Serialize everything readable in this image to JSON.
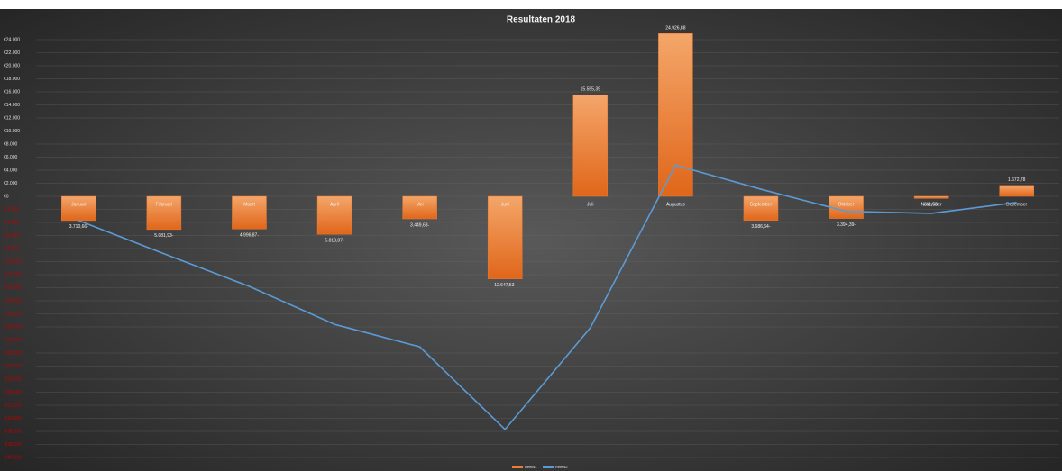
{
  "chart_data": {
    "type": "bar",
    "title": "Resultaten 2018",
    "categories": [
      "Januari",
      "Februari",
      "Maart",
      "April",
      "Mei",
      "Juni",
      "Juli",
      "Augustus",
      "September",
      "Oktober",
      "November",
      "December"
    ],
    "series": [
      {
        "name": "Reeks1",
        "type": "bar",
        "color": "#ed7d31",
        "values": [
          -3710.66,
          -5081.93,
          -4996.87,
          -5813.87,
          -3449.63,
          -12647.53,
          15555.39,
          24926.88,
          -3686.64,
          -3394.39,
          -311.53,
          1672.78
        ],
        "value_labels": [
          "3.710,66-",
          "5.081,93-",
          "4.996,87-",
          "5.813,87-",
          "3.449,63-",
          "12.647,53-",
          "15.555,39",
          "24.926,88",
          "3.686,64-",
          "3.394,39-",
          "311,53-",
          "1.672,78"
        ]
      },
      {
        "name": "Reeks2",
        "type": "line",
        "color": "#5b9bd5",
        "values": [
          -3710.66,
          -8792.59,
          -13789.46,
          -19603.33,
          -23052.96,
          -35700.49,
          -20145.1,
          4781.78,
          1095.14,
          -2299.25,
          -2610.78,
          -938
        ]
      }
    ],
    "ylim": [
      -40000,
      24000
    ],
    "yticks": [
      {
        "value": 24000,
        "label": "€24.000"
      },
      {
        "value": 22000,
        "label": "€22.000"
      },
      {
        "value": 20000,
        "label": "€20.000"
      },
      {
        "value": 18000,
        "label": "€18.000"
      },
      {
        "value": 16000,
        "label": "€16.000"
      },
      {
        "value": 14000,
        "label": "€14.000"
      },
      {
        "value": 12000,
        "label": "€12.000"
      },
      {
        "value": 10000,
        "label": "€10.000"
      },
      {
        "value": 8000,
        "label": "€8.000"
      },
      {
        "value": 6000,
        "label": "€6.000"
      },
      {
        "value": 4000,
        "label": "€4.000"
      },
      {
        "value": 2000,
        "label": "€2.000"
      },
      {
        "value": 0,
        "label": "€0"
      },
      {
        "value": -2000,
        "label": "-€2.000"
      },
      {
        "value": -4000,
        "label": "-€4.000"
      },
      {
        "value": -6000,
        "label": "-€6.000"
      },
      {
        "value": -8000,
        "label": "-€8.000"
      },
      {
        "value": -10000,
        "label": "-€10.000"
      },
      {
        "value": -12000,
        "label": "-€12.000"
      },
      {
        "value": -14000,
        "label": "-€14.000"
      },
      {
        "value": -16000,
        "label": "-€16.000"
      },
      {
        "value": -18000,
        "label": "-€18.000"
      },
      {
        "value": -20000,
        "label": "-€20.000"
      },
      {
        "value": -22000,
        "label": "-€22.000"
      },
      {
        "value": -24000,
        "label": "-€24.000"
      },
      {
        "value": -26000,
        "label": "-€26.000"
      },
      {
        "value": -28000,
        "label": "-€28.000"
      },
      {
        "value": -30000,
        "label": "-€30.000"
      },
      {
        "value": -32000,
        "label": "-€32.000"
      },
      {
        "value": -34000,
        "label": "-€34.000"
      },
      {
        "value": -36000,
        "label": "-€36.000"
      },
      {
        "value": -38000,
        "label": "-€38.000"
      },
      {
        "value": -40000,
        "label": "-€40.000"
      }
    ],
    "grid": true,
    "negative_tick_color": "#c00000",
    "legend": "bottom"
  }
}
